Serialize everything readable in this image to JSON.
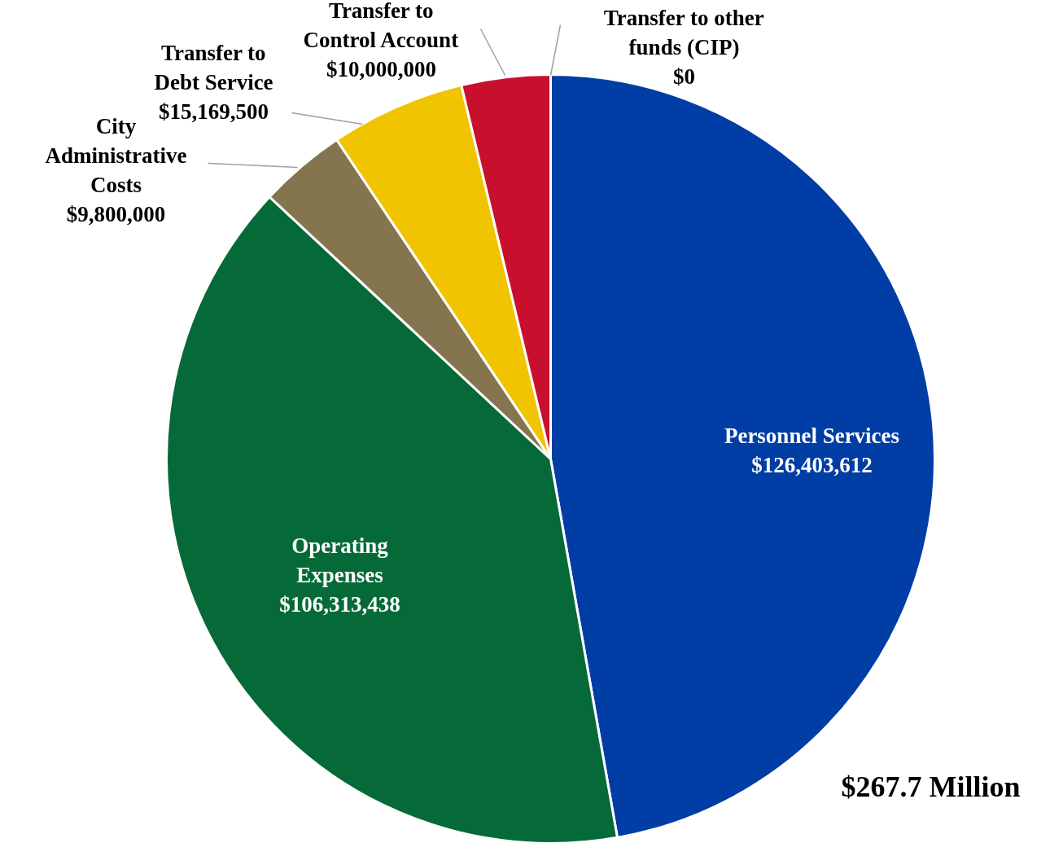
{
  "chart_data": {
    "type": "pie",
    "categories": [
      "Personnel Services",
      "Operating Expenses",
      "City Administrative Costs",
      "Transfer to Debt Service",
      "Transfer to Control Account",
      "Transfer to other funds (CIP)"
    ],
    "values": [
      126403612,
      106313438,
      9800000,
      15169500,
      10000000,
      0
    ],
    "colors": [
      "#003da5",
      "#066a38",
      "#85754e",
      "#f0c400",
      "#c8102e",
      "#b0b0b0"
    ],
    "value_labels": [
      "$126,403,612",
      "$106,313,438",
      "$9,800,000",
      "$15,169,500",
      "$10,000,000",
      "$0"
    ],
    "annotations": [
      "$267.7 Million"
    ]
  }
}
